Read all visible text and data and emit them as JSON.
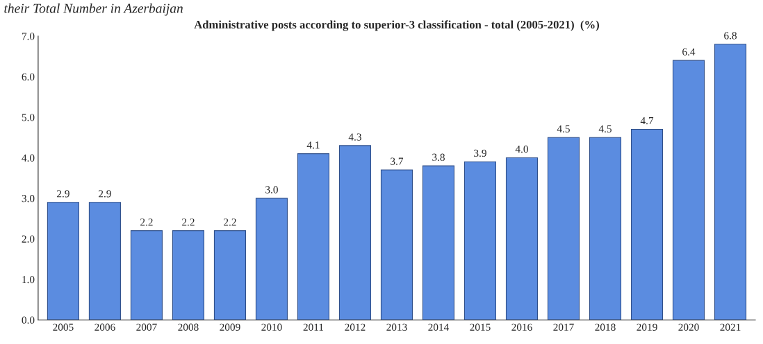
{
  "chart_data": {
    "type": "bar",
    "title": "Administrative posts according to superior-3 classification - total (2005-2021)  (%)",
    "annotations": [
      "their Total Number in Azerbaijan"
    ],
    "categories": [
      "2005",
      "2006",
      "2007",
      "2008",
      "2009",
      "2010",
      "2011",
      "2012",
      "2013",
      "2014",
      "2015",
      "2016",
      "2017",
      "2018",
      "2019",
      "2020",
      "2021"
    ],
    "values": [
      2.9,
      2.9,
      2.2,
      2.2,
      2.2,
      3.0,
      4.1,
      4.3,
      3.7,
      3.8,
      3.9,
      4.0,
      4.5,
      4.5,
      4.7,
      6.4,
      6.8
    ],
    "color": "#5b8ce0",
    "ylim": [
      0,
      7
    ],
    "yticks": [
      {
        "value": 0,
        "label": "0.0"
      },
      {
        "value": 1,
        "label": "1.0"
      },
      {
        "value": 2,
        "label": "2.0"
      },
      {
        "value": 3,
        "label": "3.0"
      },
      {
        "value": 4,
        "label": "4.0"
      },
      {
        "value": 5,
        "label": "5.0"
      },
      {
        "value": 6,
        "label": "6.0"
      },
      {
        "value": 7,
        "label": "7.0"
      }
    ],
    "value_labels": [
      "2.9",
      "2.9",
      "2.2",
      "2.2",
      "2.2",
      "3.0",
      "4.1",
      "4.3",
      "3.7",
      "3.8",
      "3.9",
      "4.0",
      "4.5",
      "4.5",
      "4.7",
      "6.4",
      "6.8"
    ],
    "grid": false
  }
}
